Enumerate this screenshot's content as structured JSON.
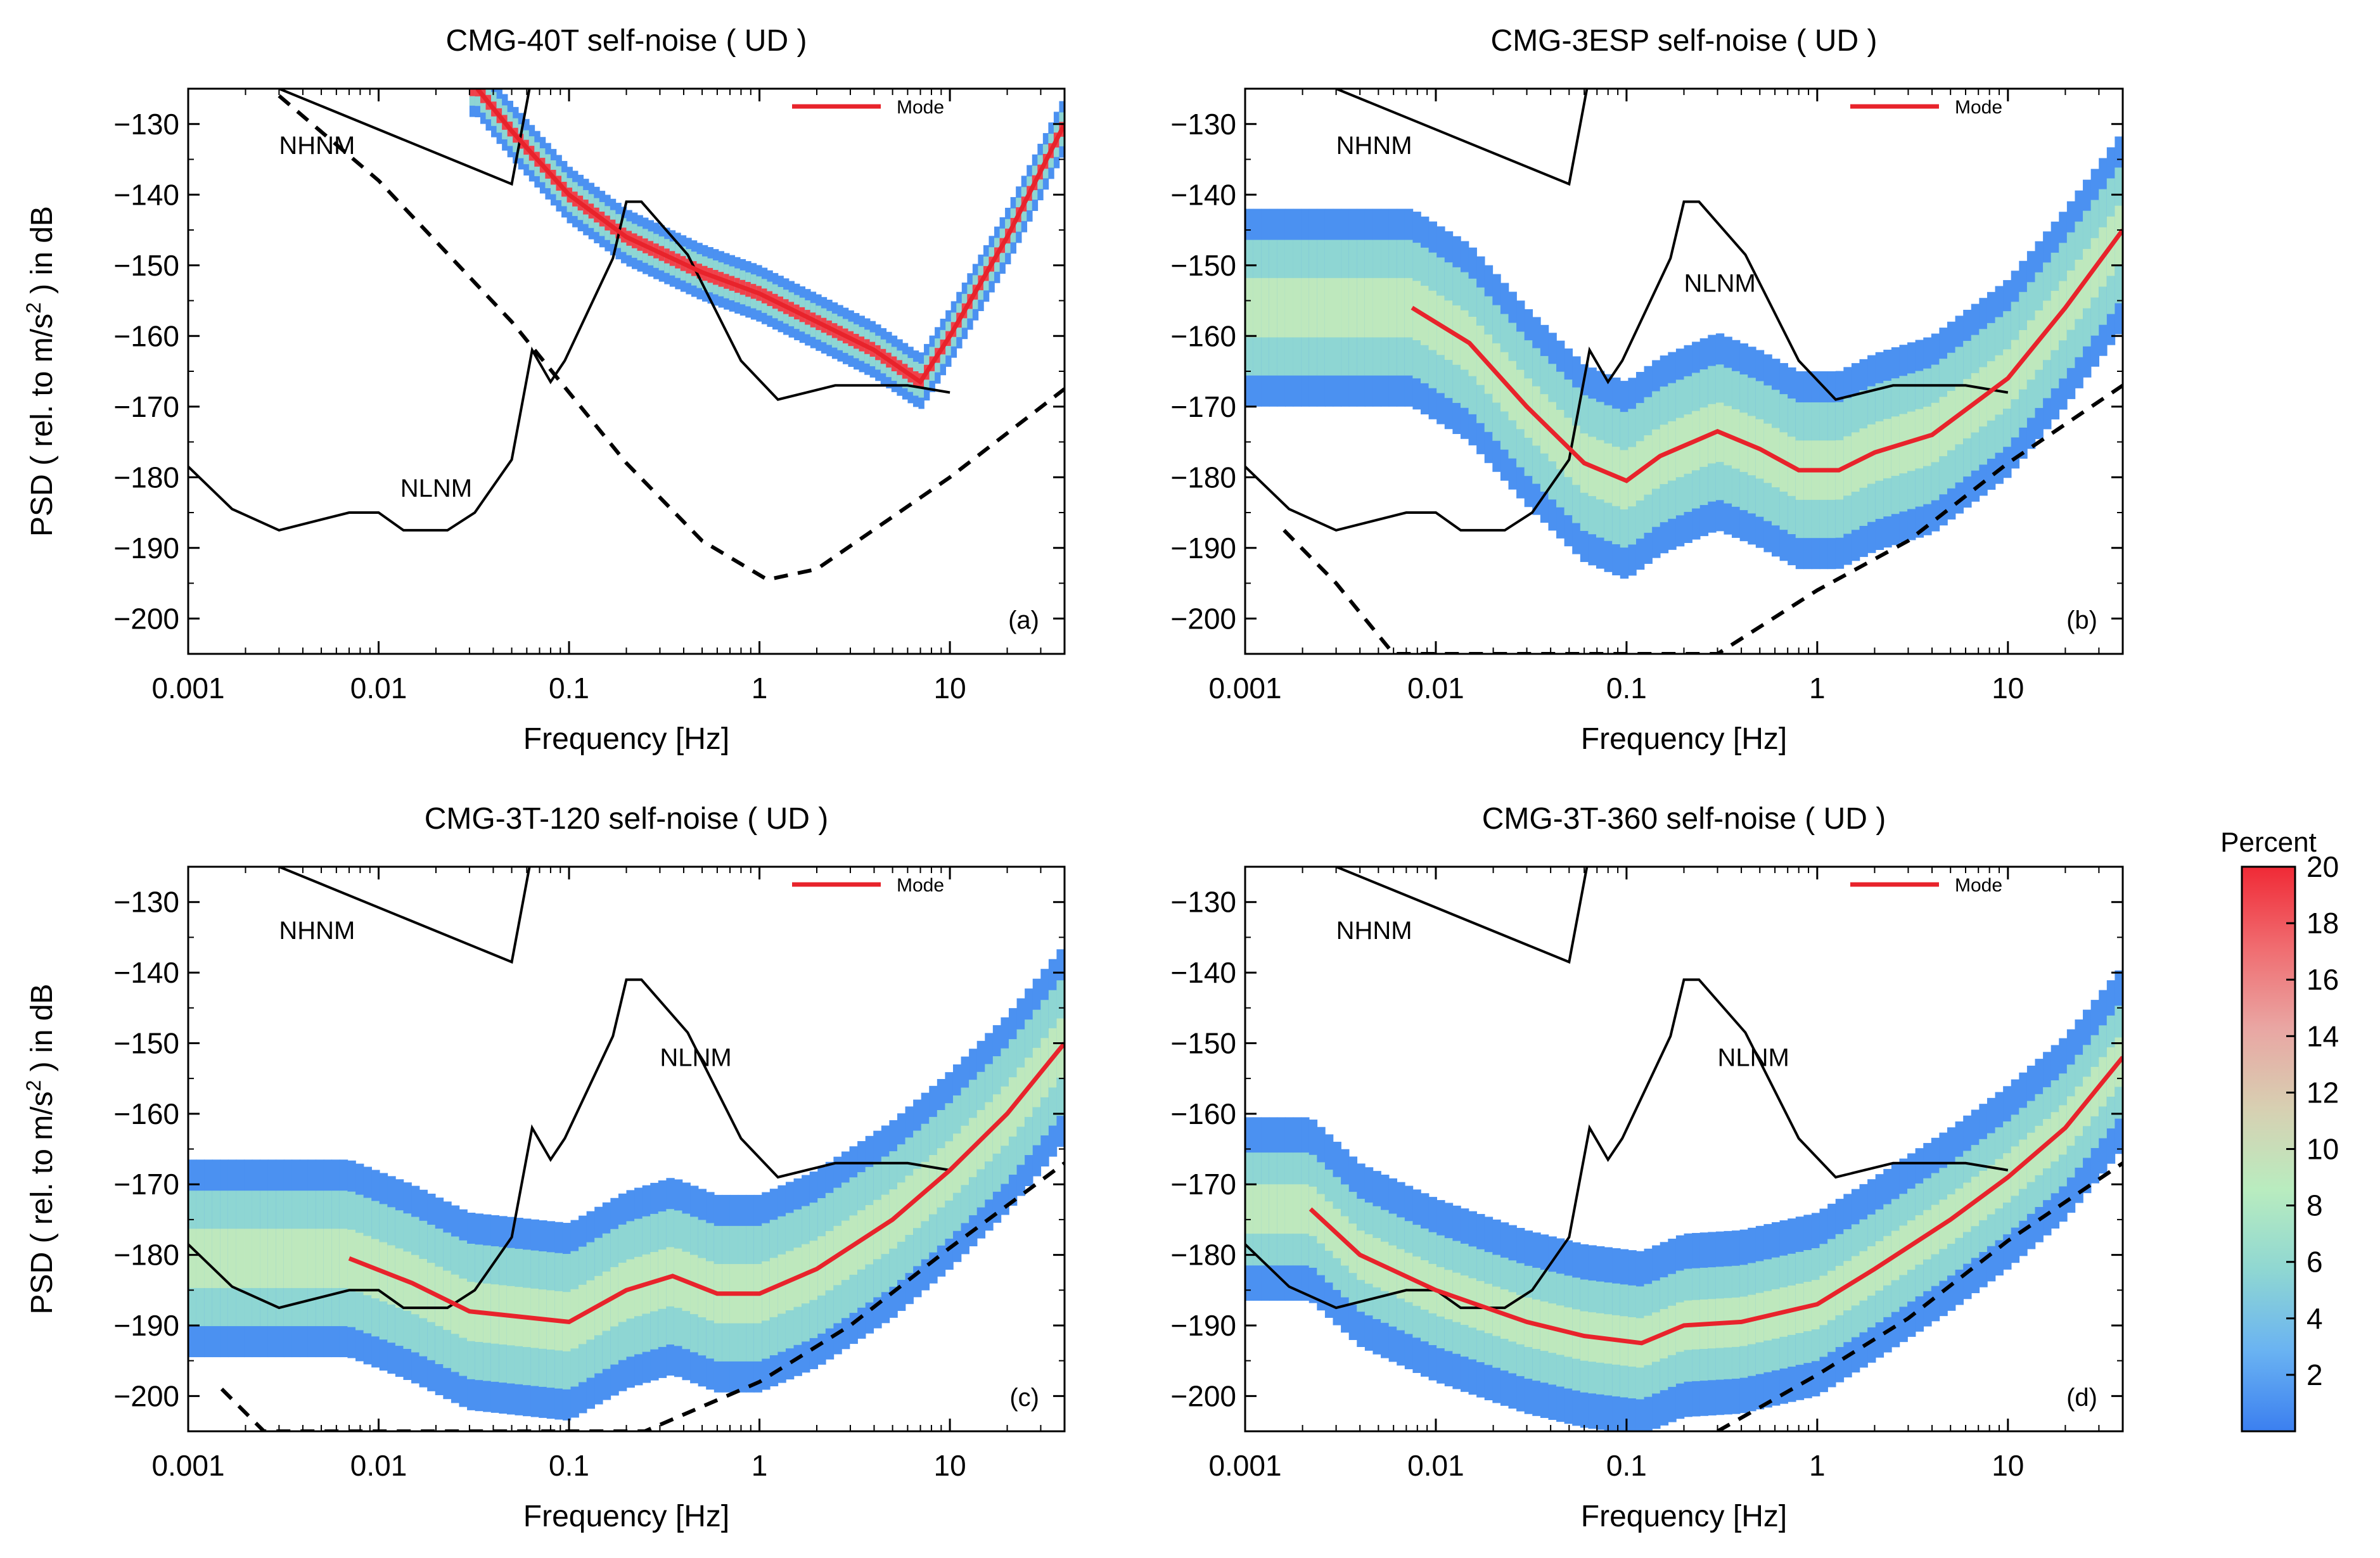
{
  "figure": {
    "ylabel_main": "PSD ( rel. to m/s",
    "ylabel_sup": "2",
    "ylabel_tail": " ) in dB",
    "colorbar": {
      "title": "Percent",
      "ticks": [
        2,
        4,
        6,
        8,
        10,
        12,
        14,
        16,
        18,
        20
      ],
      "range": [
        0,
        20
      ],
      "colors": [
        "#3b7ff0",
        "#6ab3f2",
        "#8fd7d2",
        "#b9ecbf",
        "#d7d0b2",
        "#e9a6a3",
        "#f06c70",
        "#f02a36"
      ]
    }
  },
  "chart_data": [
    {
      "type": "heatmap",
      "title": "CMG-40T self-noise ( UD )",
      "panel_label": "(a)",
      "xlabel": "Frequency [Hz]",
      "xscale": "log",
      "xlim": [
        0.001,
        40
      ],
      "ylim": [
        -205,
        -125
      ],
      "xticks": [
        0.001,
        0.01,
        0.1,
        1,
        10
      ],
      "xtick_labels": [
        "0.001",
        "0.01",
        "0.1",
        "1",
        "10"
      ],
      "yticks": [
        -130,
        -140,
        -150,
        -160,
        -170,
        -180,
        -190,
        -200
      ],
      "ytick_labels": [
        "−130",
        "−140",
        "−150",
        "−160",
        "−170",
        "−180",
        "−190",
        "−200"
      ],
      "legend": {
        "label": "Mode",
        "color": "#e8232b",
        "position": "top-right"
      },
      "model_labels": {
        "nhnm": "NHNM",
        "nlnm": "NLNM"
      },
      "nhnm": [
        [
          0.003,
          -125
        ],
        [
          0.05,
          -138.5
        ],
        [
          0.062,
          -125
        ]
      ],
      "nlnm": [
        [
          0.001,
          -178.5
        ],
        [
          0.0017,
          -184.5
        ],
        [
          0.003,
          -187.5
        ],
        [
          0.007,
          -185
        ],
        [
          0.01,
          -185
        ],
        [
          0.0135,
          -187.5
        ],
        [
          0.023,
          -187.5
        ],
        [
          0.032,
          -185
        ],
        [
          0.05,
          -177.5
        ],
        [
          0.064,
          -162
        ],
        [
          0.08,
          -166.5
        ],
        [
          0.095,
          -163.5
        ],
        [
          0.17,
          -149
        ],
        [
          0.2,
          -141
        ],
        [
          0.24,
          -141
        ],
        [
          0.42,
          -148.5
        ],
        [
          0.8,
          -163.5
        ],
        [
          1.25,
          -169
        ],
        [
          2.5,
          -167
        ],
        [
          6,
          -167
        ],
        [
          10,
          -168
        ]
      ],
      "self_noise_dashed": [
        [
          0.003,
          -126
        ],
        [
          0.01,
          -138
        ],
        [
          0.05,
          -158
        ],
        [
          0.2,
          -178
        ],
        [
          0.5,
          -189
        ],
        [
          1.1,
          -194.5
        ],
        [
          2,
          -193
        ],
        [
          10,
          -180
        ],
        [
          40,
          -167.5
        ]
      ],
      "mode": [
        [
          0.033,
          -125
        ],
        [
          0.05,
          -131
        ],
        [
          0.1,
          -140
        ],
        [
          0.2,
          -146
        ],
        [
          0.5,
          -151
        ],
        [
          1,
          -154
        ],
        [
          2,
          -158
        ],
        [
          4,
          -162
        ],
        [
          7,
          -166.5
        ],
        [
          10,
          -160
        ],
        [
          20,
          -146
        ],
        [
          40,
          -130
        ]
      ],
      "band_halfwidth_db": 1.5,
      "density_spread_db": 4,
      "extent_hz": [
        0.03,
        40
      ]
    },
    {
      "type": "heatmap",
      "title": "CMG-3ESP self-noise ( UD )",
      "panel_label": "(b)",
      "xlabel": "Frequency [Hz]",
      "xscale": "log",
      "xlim": [
        0.001,
        40
      ],
      "ylim": [
        -205,
        -125
      ],
      "xticks": [
        0.001,
        0.01,
        0.1,
        1,
        10
      ],
      "xtick_labels": [
        "0.001",
        "0.01",
        "0.1",
        "1",
        "10"
      ],
      "yticks": [
        -130,
        -140,
        -150,
        -160,
        -170,
        -180,
        -190,
        -200
      ],
      "ytick_labels": [
        "−130",
        "−140",
        "−150",
        "−160",
        "−170",
        "−180",
        "−190",
        "−200"
      ],
      "legend": {
        "label": "Mode",
        "color": "#e8232b",
        "position": "top-right"
      },
      "model_labels": {
        "nhnm": "NHNM",
        "nlnm": "NLNM"
      },
      "nhnm": [
        [
          0.003,
          -125
        ],
        [
          0.05,
          -138.5
        ],
        [
          0.062,
          -125
        ]
      ],
      "nlnm": [
        [
          0.001,
          -178.5
        ],
        [
          0.0017,
          -184.5
        ],
        [
          0.003,
          -187.5
        ],
        [
          0.007,
          -185
        ],
        [
          0.01,
          -185
        ],
        [
          0.0135,
          -187.5
        ],
        [
          0.023,
          -187.5
        ],
        [
          0.032,
          -185
        ],
        [
          0.05,
          -177.5
        ],
        [
          0.064,
          -162
        ],
        [
          0.08,
          -166.5
        ],
        [
          0.095,
          -163.5
        ],
        [
          0.17,
          -149
        ],
        [
          0.2,
          -141
        ],
        [
          0.24,
          -141
        ],
        [
          0.42,
          -148.5
        ],
        [
          0.8,
          -163.5
        ],
        [
          1.25,
          -169
        ],
        [
          2.5,
          -167
        ],
        [
          6,
          -167
        ],
        [
          10,
          -168
        ]
      ],
      "self_noise_dashed": [
        [
          0.0016,
          -187.5
        ],
        [
          0.003,
          -195
        ],
        [
          0.006,
          -205
        ],
        [
          0.3,
          -205
        ],
        [
          1,
          -196
        ],
        [
          3,
          -189
        ],
        [
          10,
          -178
        ],
        [
          40,
          -167
        ]
      ],
      "mode": [
        [
          0.0075,
          -156
        ],
        [
          0.015,
          -161
        ],
        [
          0.03,
          -170
        ],
        [
          0.06,
          -178
        ],
        [
          0.1,
          -180.5
        ],
        [
          0.15,
          -177
        ],
        [
          0.3,
          -173.5
        ],
        [
          0.5,
          -176
        ],
        [
          0.8,
          -179
        ],
        [
          1.3,
          -179
        ],
        [
          2,
          -176.5
        ],
        [
          4,
          -174
        ],
        [
          10,
          -166
        ],
        [
          20,
          -156
        ],
        [
          40,
          -145
        ]
      ],
      "band_halfwidth_db": 6,
      "density_spread_db": 14,
      "extent_hz": [
        0.001,
        40
      ]
    },
    {
      "type": "heatmap",
      "title": "CMG-3T-120 self-noise ( UD )",
      "panel_label": "(c)",
      "xlabel": "Frequency [Hz]",
      "xscale": "log",
      "xlim": [
        0.001,
        40
      ],
      "ylim": [
        -205,
        -125
      ],
      "xticks": [
        0.001,
        0.01,
        0.1,
        1,
        10
      ],
      "xtick_labels": [
        "0.001",
        "0.01",
        "0.1",
        "1",
        "10"
      ],
      "yticks": [
        -130,
        -140,
        -150,
        -160,
        -170,
        -180,
        -190,
        -200
      ],
      "ytick_labels": [
        "−130",
        "−140",
        "−150",
        "−160",
        "−170",
        "−180",
        "−190",
        "−200"
      ],
      "legend": {
        "label": "Mode",
        "color": "#e8232b",
        "position": "top-right"
      },
      "model_labels": {
        "nhnm": "NHNM",
        "nlnm": "NLNM"
      },
      "nhnm": [
        [
          0.003,
          -125
        ],
        [
          0.05,
          -138.5
        ],
        [
          0.062,
          -125
        ]
      ],
      "nlnm": [
        [
          0.001,
          -178.5
        ],
        [
          0.0017,
          -184.5
        ],
        [
          0.003,
          -187.5
        ],
        [
          0.007,
          -185
        ],
        [
          0.01,
          -185
        ],
        [
          0.0135,
          -187.5
        ],
        [
          0.023,
          -187.5
        ],
        [
          0.032,
          -185
        ],
        [
          0.05,
          -177.5
        ],
        [
          0.064,
          -162
        ],
        [
          0.08,
          -166.5
        ],
        [
          0.095,
          -163.5
        ],
        [
          0.17,
          -149
        ],
        [
          0.2,
          -141
        ],
        [
          0.24,
          -141
        ],
        [
          0.42,
          -148.5
        ],
        [
          0.8,
          -163.5
        ],
        [
          1.25,
          -169
        ],
        [
          2.5,
          -167
        ],
        [
          6,
          -167
        ],
        [
          10,
          -168
        ]
      ],
      "self_noise_dashed": [
        [
          0.0015,
          -199
        ],
        [
          0.0025,
          -205
        ],
        [
          0.25,
          -205
        ],
        [
          1,
          -198
        ],
        [
          3,
          -190
        ],
        [
          10,
          -179
        ],
        [
          40,
          -167
        ]
      ],
      "mode": [
        [
          0.007,
          -180.5
        ],
        [
          0.015,
          -184
        ],
        [
          0.03,
          -188
        ],
        [
          0.1,
          -189.5
        ],
        [
          0.2,
          -185
        ],
        [
          0.35,
          -183
        ],
        [
          0.6,
          -185.5
        ],
        [
          1,
          -185.5
        ],
        [
          2,
          -182
        ],
        [
          5,
          -175
        ],
        [
          10,
          -168
        ],
        [
          20,
          -160
        ],
        [
          40,
          -150
        ]
      ],
      "band_halfwidth_db": 6,
      "density_spread_db": 14,
      "extent_hz": [
        0.001,
        40
      ]
    },
    {
      "type": "heatmap",
      "title": "CMG-3T-360 self-noise ( UD )",
      "panel_label": "(d)",
      "xlabel": "Frequency [Hz]",
      "xscale": "log",
      "xlim": [
        0.001,
        40
      ],
      "ylim": [
        -205,
        -125
      ],
      "xticks": [
        0.001,
        0.01,
        0.1,
        1,
        10
      ],
      "xtick_labels": [
        "0.001",
        "0.01",
        "0.1",
        "1",
        "10"
      ],
      "yticks": [
        -130,
        -140,
        -150,
        -160,
        -170,
        -180,
        -190,
        -200
      ],
      "ytick_labels": [
        "−130",
        "−140",
        "−150",
        "−160",
        "−170",
        "−180",
        "−190",
        "−200"
      ],
      "legend": {
        "label": "Mode",
        "color": "#e8232b",
        "position": "top-right"
      },
      "model_labels": {
        "nhnm": "NHNM",
        "nlnm": "NLNM"
      },
      "nhnm": [
        [
          0.003,
          -125
        ],
        [
          0.05,
          -138.5
        ],
        [
          0.062,
          -125
        ]
      ],
      "nlnm": [
        [
          0.001,
          -178.5
        ],
        [
          0.0017,
          -184.5
        ],
        [
          0.003,
          -187.5
        ],
        [
          0.007,
          -185
        ],
        [
          0.01,
          -185
        ],
        [
          0.0135,
          -187.5
        ],
        [
          0.023,
          -187.5
        ],
        [
          0.032,
          -185
        ],
        [
          0.05,
          -177.5
        ],
        [
          0.064,
          -162
        ],
        [
          0.08,
          -166.5
        ],
        [
          0.095,
          -163.5
        ],
        [
          0.17,
          -149
        ],
        [
          0.2,
          -141
        ],
        [
          0.24,
          -141
        ],
        [
          0.42,
          -148.5
        ],
        [
          0.8,
          -163.5
        ],
        [
          1.25,
          -169
        ],
        [
          2.5,
          -167
        ],
        [
          6,
          -167
        ],
        [
          10,
          -168
        ]
      ],
      "self_noise_dashed": [
        [
          0.3,
          -205
        ],
        [
          1,
          -197
        ],
        [
          3,
          -189
        ],
        [
          10,
          -178
        ],
        [
          40,
          -167
        ]
      ],
      "mode": [
        [
          0.0022,
          -173.5
        ],
        [
          0.004,
          -180
        ],
        [
          0.01,
          -185
        ],
        [
          0.03,
          -189.5
        ],
        [
          0.06,
          -191.5
        ],
        [
          0.12,
          -192.5
        ],
        [
          0.2,
          -190
        ],
        [
          0.4,
          -189.5
        ],
        [
          1,
          -187
        ],
        [
          2,
          -182
        ],
        [
          5,
          -175
        ],
        [
          10,
          -169
        ],
        [
          20,
          -162
        ],
        [
          40,
          -152
        ]
      ],
      "band_halfwidth_db": 5,
      "density_spread_db": 13,
      "extent_hz": [
        0.001,
        40
      ]
    }
  ]
}
